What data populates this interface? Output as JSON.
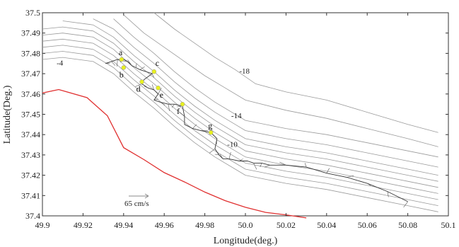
{
  "chart_data": {
    "type": "line",
    "title": "",
    "xlabel": "Longitude(deg.)",
    "ylabel": "Latitude(Deg.)",
    "xlim": [
      49.9,
      50.1
    ],
    "ylim": [
      37.4,
      37.5
    ],
    "x_ticks": [
      "49.9",
      "49.92",
      "49.94",
      "49.96",
      "49.98",
      "50.0",
      "50.02",
      "50.04",
      "50.06",
      "50.08",
      "50.1"
    ],
    "y_ticks": [
      "37.4",
      "37.41",
      "37.42",
      "37.43",
      "37.44",
      "37.45",
      "37.46",
      "37.47",
      "37.48",
      "37.49",
      "37.5"
    ],
    "grid": false,
    "colors": {
      "coastline": "#e03030",
      "contour": "#9a9a9a",
      "track": "#333333",
      "point": "#e8f020"
    },
    "coastline": {
      "x": [
        49.9,
        49.908,
        49.922,
        49.932,
        49.94,
        49.95,
        49.96,
        49.97,
        49.98,
        49.99,
        50.0,
        50.01,
        50.02,
        50.03
      ],
      "y": [
        37.4605,
        37.4622,
        37.4582,
        37.4493,
        37.4336,
        37.4277,
        37.4213,
        37.4167,
        37.4117,
        37.4075,
        37.4042,
        37.4017,
        37.4005,
        37.399
      ]
    },
    "contours": [
      {
        "x": [
          49.9,
          49.91,
          49.925,
          49.935,
          49.945,
          49.955,
          49.965,
          49.975,
          49.985,
          49.995,
          50.0,
          50.02,
          50.04,
          50.06,
          50.08,
          50.095
        ],
        "y": [
          37.477,
          37.478,
          37.476,
          37.47,
          37.461,
          37.453,
          37.444,
          37.436,
          37.429,
          37.423,
          37.42,
          37.416,
          37.413,
          37.409,
          37.405,
          37.402
        ]
      },
      {
        "x": [
          49.9,
          49.91,
          49.925,
          49.935,
          49.945,
          49.955,
          49.965,
          49.975,
          49.985,
          49.995,
          50.0,
          50.02,
          50.04,
          50.06,
          50.08,
          50.095
        ],
        "y": [
          37.48,
          37.481,
          37.479,
          37.473,
          37.464,
          37.456,
          37.447,
          37.439,
          37.432,
          37.426,
          37.423,
          37.419,
          37.416,
          37.412,
          37.408,
          37.405
        ]
      },
      {
        "x": [
          49.9,
          49.91,
          49.925,
          49.935,
          49.945,
          49.955,
          49.965,
          49.975,
          49.985,
          49.995,
          50.0,
          50.02,
          50.04,
          50.06,
          50.08,
          50.095
        ],
        "y": [
          37.483,
          37.484,
          37.482,
          37.476,
          37.467,
          37.459,
          37.45,
          37.442,
          37.435,
          37.429,
          37.426,
          37.422,
          37.419,
          37.415,
          37.411,
          37.408
        ]
      },
      {
        "x": [
          49.9,
          49.91,
          49.925,
          49.935,
          49.945,
          49.955,
          49.965,
          49.975,
          49.985,
          49.995,
          50.0,
          50.02,
          50.04,
          50.06,
          50.08,
          50.095
        ],
        "y": [
          37.486,
          37.487,
          37.485,
          37.479,
          37.47,
          37.462,
          37.453,
          37.445,
          37.438,
          37.432,
          37.429,
          37.425,
          37.422,
          37.418,
          37.414,
          37.411
        ]
      },
      {
        "x": [
          49.9,
          49.91,
          49.925,
          49.935,
          49.945,
          49.955,
          49.965,
          49.975,
          49.985,
          49.995,
          50.0,
          50.02,
          50.04,
          50.06,
          50.08,
          50.095
        ],
        "y": [
          37.489,
          37.49,
          37.488,
          37.482,
          37.473,
          37.465,
          37.456,
          37.448,
          37.441,
          37.435,
          37.432,
          37.428,
          37.425,
          37.421,
          37.417,
          37.414
        ]
      },
      {
        "x": [
          49.9,
          49.91,
          49.925,
          49.935,
          49.945,
          49.955,
          49.965,
          49.975,
          49.985,
          49.995,
          50.0,
          50.02,
          50.04,
          50.06,
          50.08,
          50.095
        ],
        "y": [
          37.492,
          37.493,
          37.491,
          37.485,
          37.476,
          37.468,
          37.459,
          37.451,
          37.444,
          37.438,
          37.435,
          37.431,
          37.428,
          37.424,
          37.42,
          37.417
        ]
      },
      {
        "x": [
          49.91,
          49.925,
          49.935,
          49.945,
          49.955,
          49.965,
          49.975,
          49.985,
          49.995,
          50.0,
          50.02,
          50.04,
          50.06,
          50.08,
          50.095
        ],
        "y": [
          37.496,
          37.494,
          37.488,
          37.479,
          37.471,
          37.462,
          37.454,
          37.447,
          37.441,
          37.438,
          37.434,
          37.431,
          37.427,
          37.423,
          37.42
        ]
      },
      {
        "x": [
          49.925,
          49.935,
          49.945,
          49.955,
          49.965,
          49.975,
          49.985,
          49.995,
          50.0,
          50.02,
          50.04,
          50.06,
          50.08,
          50.095
        ],
        "y": [
          37.497,
          37.492,
          37.483,
          37.475,
          37.466,
          37.458,
          37.451,
          37.445,
          37.442,
          37.438,
          37.435,
          37.431,
          37.427,
          37.424
        ]
      },
      {
        "x": [
          49.935,
          49.945,
          49.955,
          49.965,
          49.975,
          49.985,
          49.995,
          50.0,
          50.02,
          50.04,
          50.06,
          50.08,
          50.095
        ],
        "y": [
          37.497,
          37.488,
          37.48,
          37.471,
          37.463,
          37.456,
          37.45,
          37.447,
          37.443,
          37.44,
          37.436,
          37.432,
          37.429
        ]
      },
      {
        "x": [
          49.94,
          49.95,
          49.96,
          49.97,
          49.98,
          49.99,
          50.0,
          50.02,
          50.04,
          50.06,
          50.08,
          50.095
        ],
        "y": [
          37.499,
          37.49,
          37.483,
          37.476,
          37.469,
          37.463,
          37.457,
          37.452,
          37.448,
          37.443,
          37.438,
          37.434
        ]
      },
      {
        "x": [
          49.955,
          49.965,
          49.975,
          49.985,
          49.995,
          50.005,
          50.02,
          50.04,
          50.06,
          50.08,
          50.095
        ],
        "y": [
          37.5,
          37.492,
          37.485,
          37.478,
          37.472,
          37.465,
          37.461,
          37.457,
          37.451,
          37.445,
          37.441
        ]
      }
    ],
    "contour_labels": [
      {
        "text": "-4",
        "x": 49.907,
        "y": 37.474
      },
      {
        "text": "-10",
        "x": 49.991,
        "y": 37.434
      },
      {
        "text": "-14",
        "x": 49.993,
        "y": 37.448
      },
      {
        "text": "-18",
        "x": 49.997,
        "y": 37.47
      }
    ],
    "track": {
      "x": [
        49.931,
        49.934,
        49.937,
        49.94,
        49.942,
        49.944,
        49.946,
        49.948,
        49.951,
        49.954,
        49.95,
        49.949,
        49.952,
        49.955,
        49.957,
        49.955,
        49.958,
        49.962,
        49.965,
        49.969,
        49.97,
        49.97,
        49.974,
        49.978,
        49.983,
        49.986,
        49.985,
        49.987,
        49.989,
        49.992,
        49.997,
        50.001,
        50.004,
        50.008,
        50.012,
        50.02,
        50.03,
        50.04,
        50.05,
        50.06,
        50.07,
        50.08
      ],
      "y": [
        37.475,
        37.476,
        37.477,
        37.477,
        37.476,
        37.474,
        37.473,
        37.472,
        37.471,
        37.47,
        37.467,
        37.465,
        37.463,
        37.462,
        37.46,
        37.457,
        37.456,
        37.455,
        37.455,
        37.454,
        37.449,
        37.445,
        37.443,
        37.442,
        37.441,
        37.438,
        37.433,
        37.43,
        37.428,
        37.428,
        37.427,
        37.427,
        37.426,
        37.426,
        37.425,
        37.425,
        37.424,
        37.421,
        37.419,
        37.416,
        37.412,
        37.407
      ]
    },
    "points": [
      {
        "label": "a",
        "x": 49.939,
        "y": 37.477
      },
      {
        "label": "b",
        "x": 49.94,
        "y": 37.473
      },
      {
        "label": "c",
        "x": 49.955,
        "y": 37.471
      },
      {
        "label": "d",
        "x": 49.949,
        "y": 37.466
      },
      {
        "label": "e",
        "x": 49.957,
        "y": 37.463
      },
      {
        "label": "f",
        "x": 49.969,
        "y": 37.455
      },
      {
        "label": "g",
        "x": 49.983,
        "y": 37.441
      }
    ],
    "scale_vector": {
      "label": "65 cm/s"
    }
  }
}
